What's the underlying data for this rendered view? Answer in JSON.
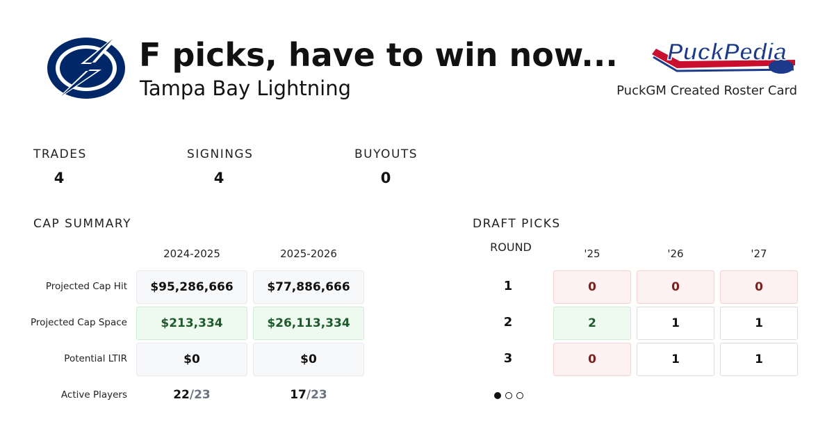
{
  "header": {
    "title": "F picks, have to win now...",
    "subtitle": "Tampa Bay Lightning",
    "brand_logo": "PuckPedia",
    "brand_caption": "PuckGM Created Roster Card"
  },
  "stats": [
    {
      "label": "TRADES",
      "value": 4
    },
    {
      "label": "SIGNINGS",
      "value": 4
    },
    {
      "label": "BUYOUTS",
      "value": 0
    }
  ],
  "cap_summary": {
    "title": "CAP SUMMARY",
    "columns": [
      "2024-2025",
      "2025-2026"
    ],
    "rows": [
      {
        "label": "Projected Cap Hit",
        "values": [
          "$95,286,666",
          "$77,886,666"
        ]
      },
      {
        "label": "Projected Cap Space",
        "values": [
          "$213,334",
          "$26,113,334"
        ]
      },
      {
        "label": "Potential LTIR",
        "values": [
          "$0",
          "$0"
        ]
      }
    ],
    "active_players": {
      "label": "Active Players",
      "values": [
        {
          "count": "22",
          "limit": "/23"
        },
        {
          "count": "17",
          "limit": "/23"
        }
      ]
    }
  },
  "draft_picks": {
    "title": "DRAFT PICKS",
    "round_header": "ROUND",
    "columns": [
      "'25",
      "'26",
      "'27"
    ],
    "rows": [
      {
        "round": 1,
        "values": [
          0,
          0,
          0
        ]
      },
      {
        "round": 2,
        "values": [
          2,
          1,
          1
        ]
      },
      {
        "round": 3,
        "values": [
          0,
          1,
          1
        ]
      }
    ]
  }
}
